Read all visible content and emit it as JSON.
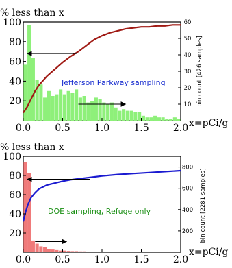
{
  "chart_data": [
    {
      "type": "bar",
      "corner_label": "% less than x",
      "xlabel": "x=pCi/g",
      "annotation": "Jefferson Parkway sampling",
      "y_label_right": "bin count [426 samples]",
      "xlim": [
        0,
        2.0
      ],
      "ylim_left": [
        0,
        100
      ],
      "ylim_right": [
        0,
        60
      ],
      "x_ticks": [
        "0.0",
        "0.5",
        "1.0",
        "1.5",
        "2.0"
      ],
      "y_ticks_left": [
        "20",
        "40",
        "60",
        "80",
        "100"
      ],
      "y_ticks_right": [
        "10",
        "20",
        "30",
        "40",
        "50",
        "60"
      ],
      "bin_width": 0.05,
      "bins_x": [
        0.0,
        0.05,
        0.1,
        0.15,
        0.2,
        0.25,
        0.3,
        0.35,
        0.4,
        0.45,
        0.5,
        0.55,
        0.6,
        0.65,
        0.7,
        0.75,
        0.8,
        0.85,
        0.9,
        0.95,
        1.0,
        1.05,
        1.1,
        1.15,
        1.2,
        1.25,
        1.3,
        1.35,
        1.4,
        1.45,
        1.5,
        1.55,
        1.6,
        1.65,
        1.7,
        1.75,
        1.8,
        1.85,
        1.9,
        1.95
      ],
      "bin_counts": [
        34,
        58,
        38,
        25,
        22,
        14,
        18,
        15,
        16,
        19,
        16,
        18,
        17,
        19,
        14,
        15,
        11,
        12,
        14,
        13,
        11,
        10,
        11,
        8,
        6,
        7,
        6,
        6,
        5,
        5,
        3,
        2,
        2,
        3,
        2,
        2,
        1,
        1,
        2,
        1
      ],
      "bar_color": "#8ef07a",
      "cumulative_color": "#a01a14",
      "cumulative_x": [
        0.0,
        0.05,
        0.1,
        0.15,
        0.2,
        0.3,
        0.4,
        0.5,
        0.6,
        0.7,
        0.8,
        0.9,
        1.0,
        1.1,
        1.2,
        1.3,
        1.4,
        1.5,
        1.6,
        1.7,
        1.8,
        1.9,
        2.0
      ],
      "cumulative_y": [
        8,
        14,
        22,
        30,
        36,
        45,
        52,
        59,
        65,
        70,
        76,
        82,
        86,
        89,
        91,
        93,
        94,
        95,
        95,
        96,
        96,
        97,
        97
      ],
      "arrows": [
        {
          "direction": "left",
          "y_left": 68,
          "x_from": 0.68,
          "x_to": 0.05
        },
        {
          "direction": "right",
          "y_right": 10,
          "x_from": 0.7,
          "x_to": 1.3
        }
      ]
    },
    {
      "type": "bar",
      "corner_label": "% less than x",
      "xlabel": "x=pCi/g",
      "annotation": "DOE sampling, Refuge only",
      "y_label_right": "bin count [2281 samples]",
      "xlim": [
        0,
        2.0
      ],
      "ylim_left": [
        0,
        100
      ],
      "ylim_right": [
        0,
        900
      ],
      "x_ticks": [
        "0.0",
        "0.5",
        "1.0",
        "1.5",
        "2.0"
      ],
      "y_ticks_left": [
        "20",
        "40",
        "60",
        "80",
        "100"
      ],
      "y_ticks_right": [
        "200",
        "400",
        "600",
        "800"
      ],
      "bin_width": 0.05,
      "bins_x": [
        0.0,
        0.05,
        0.1,
        0.15,
        0.2,
        0.25,
        0.3,
        0.35,
        0.4,
        0.45,
        0.5,
        0.55,
        0.6,
        0.65,
        0.7,
        0.75,
        0.8,
        0.85,
        0.9,
        0.95,
        1.0,
        1.05,
        1.1,
        1.15,
        1.2,
        1.25,
        1.3,
        1.35,
        1.4,
        1.45,
        1.5,
        1.55,
        1.6,
        1.65,
        1.7,
        1.75,
        1.8,
        1.85,
        1.9,
        1.95
      ],
      "bin_counts": [
        845,
        740,
        110,
        80,
        55,
        45,
        30,
        25,
        20,
        15,
        15,
        12,
        10,
        10,
        8,
        8,
        6,
        6,
        5,
        5,
        4,
        4,
        4,
        3,
        3,
        3,
        3,
        2,
        2,
        2,
        2,
        2,
        2,
        2,
        2,
        2,
        2,
        2,
        2,
        2
      ],
      "bar_color": "#f07a7a",
      "cumulative_color": "#1a1ad0",
      "cumulative_x": [
        0.0,
        0.03,
        0.06,
        0.1,
        0.15,
        0.2,
        0.3,
        0.4,
        0.5,
        0.6,
        0.7,
        0.8,
        0.9,
        1.0,
        1.2,
        1.4,
        1.6,
        1.8,
        2.0
      ],
      "cumulative_y": [
        32,
        42,
        50,
        57,
        62,
        66,
        70,
        72,
        74,
        75.5,
        76.5,
        77.5,
        78.5,
        79.5,
        81,
        82,
        83,
        84,
        85
      ],
      "arrows": [
        {
          "direction": "left",
          "y_left": 76,
          "x_from": 0.85,
          "x_to": 0.05
        },
        {
          "direction": "right",
          "y_right": 100,
          "x_from": 0.15,
          "x_to": 0.55
        }
      ]
    }
  ]
}
